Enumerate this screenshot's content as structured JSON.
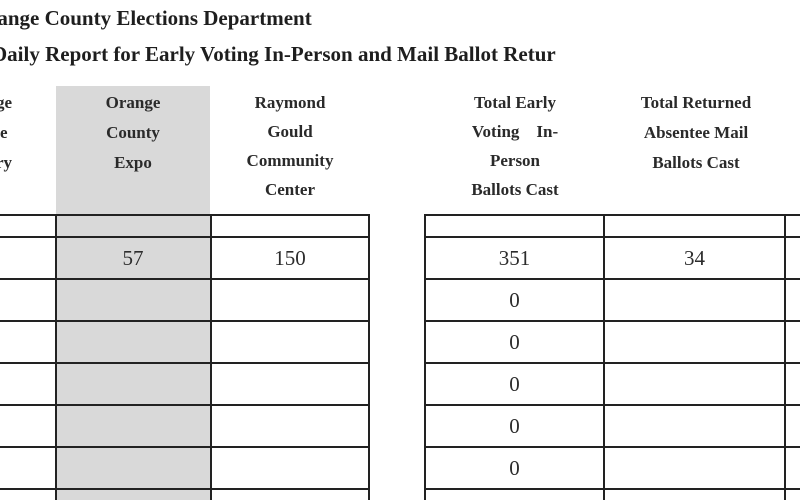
{
  "header": {
    "title_line1": "range County Elections Department",
    "title_line2": "Daily Report for Early Voting In-Person and Mail Ballot Retur"
  },
  "columns": {
    "partial_left": [
      "ge",
      "e",
      "ry"
    ],
    "orange_county_expo": [
      "Orange",
      "County",
      "Expo"
    ],
    "raymond_gould": [
      "Raymond",
      "Gould",
      "Community",
      "Center"
    ],
    "total_early": [
      "Total Early",
      "Voting    In-",
      "Person",
      "Ballots Cast"
    ],
    "total_returned": [
      "Total Returned",
      "Absentee Mail",
      "Ballots Cast"
    ]
  },
  "rows": [
    {
      "expo": "57",
      "raymond": "150",
      "total_early": "351",
      "total_returned": "34"
    },
    {
      "expo": "",
      "raymond": "",
      "total_early": "0",
      "total_returned": ""
    },
    {
      "expo": "",
      "raymond": "",
      "total_early": "0",
      "total_returned": ""
    },
    {
      "expo": "",
      "raymond": "",
      "total_early": "0",
      "total_returned": ""
    },
    {
      "expo": "",
      "raymond": "",
      "total_early": "0",
      "total_returned": ""
    },
    {
      "expo": "",
      "raymond": "",
      "total_early": "0",
      "total_returned": ""
    }
  ]
}
